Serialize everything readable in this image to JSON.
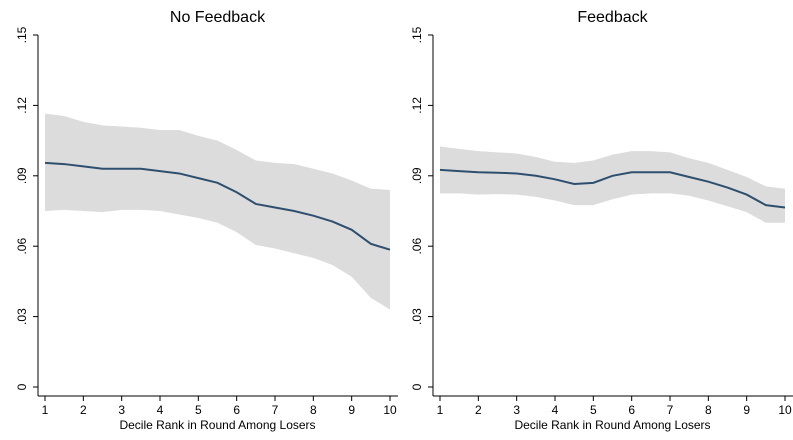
{
  "chart_data": [
    {
      "type": "line",
      "title": "No Feedback",
      "xlabel": "Decile Rank in Round Among Losers",
      "x": [
        1,
        1.5,
        2,
        2.5,
        3,
        3.5,
        4,
        4.5,
        5,
        5.5,
        6,
        6.5,
        7,
        7.5,
        8,
        8.5,
        9,
        9.5,
        10
      ],
      "series": [
        {
          "color": "#2f4f6f",
          "values": [
            0.0955,
            0.095,
            0.094,
            0.093,
            0.093,
            0.093,
            0.092,
            0.091,
            0.089,
            0.087,
            0.083,
            0.078,
            0.0765,
            0.075,
            0.073,
            0.0705,
            0.067,
            0.061,
            0.0585
          ],
          "upper": [
            0.1165,
            0.1155,
            0.113,
            0.1115,
            0.111,
            0.1105,
            0.1095,
            0.1095,
            0.107,
            0.105,
            0.101,
            0.0965,
            0.0955,
            0.095,
            0.093,
            0.091,
            0.088,
            0.0845,
            0.084
          ],
          "lower": [
            0.075,
            0.0755,
            0.075,
            0.0745,
            0.0755,
            0.0755,
            0.075,
            0.0735,
            0.072,
            0.07,
            0.066,
            0.0605,
            0.059,
            0.057,
            0.055,
            0.052,
            0.047,
            0.038,
            0.033
          ],
          "band_color": "#dcdcdc"
        }
      ],
      "xlim": [
        1,
        10
      ],
      "xticks": [
        1,
        2,
        3,
        4,
        5,
        6,
        7,
        8,
        9,
        10
      ],
      "ylim": [
        0,
        0.15
      ],
      "yticks": [
        0,
        {
          "value": 0.03,
          "label": ".03"
        },
        {
          "value": 0.06,
          "label": ".06"
        },
        {
          "value": 0.09,
          "label": ".09"
        },
        {
          "value": 0.12,
          "label": ".12"
        },
        {
          "value": 0.15,
          "label": ".15"
        }
      ]
    },
    {
      "type": "line",
      "title": "Feedback",
      "xlabel": "Decile Rank in Round Among Losers",
      "x": [
        1,
        1.5,
        2,
        2.5,
        3,
        3.5,
        4,
        4.5,
        5,
        5.5,
        6,
        6.5,
        7,
        7.5,
        8,
        8.5,
        9,
        9.5,
        10
      ],
      "series": [
        {
          "color": "#2f4f6f",
          "values": [
            0.0925,
            0.092,
            0.0915,
            0.0913,
            0.091,
            0.09,
            0.0885,
            0.0865,
            0.087,
            0.09,
            0.0915,
            0.0915,
            0.0915,
            0.0895,
            0.0875,
            0.085,
            0.082,
            0.0775,
            0.0765
          ],
          "upper": [
            0.1025,
            0.1015,
            0.1005,
            0.1,
            0.0995,
            0.098,
            0.096,
            0.0955,
            0.0965,
            0.099,
            0.1005,
            0.1005,
            0.1,
            0.0975,
            0.0955,
            0.0925,
            0.0895,
            0.0855,
            0.0845
          ],
          "lower": [
            0.0825,
            0.0825,
            0.082,
            0.0822,
            0.082,
            0.081,
            0.0795,
            0.0775,
            0.0775,
            0.08,
            0.082,
            0.0825,
            0.0825,
            0.0815,
            0.0795,
            0.077,
            0.0745,
            0.07,
            0.07
          ],
          "band_color": "#dcdcdc"
        }
      ],
      "xlim": [
        1,
        10
      ],
      "xticks": [
        1,
        2,
        3,
        4,
        5,
        6,
        7,
        8,
        9,
        10
      ],
      "ylim": [
        0,
        0.15
      ],
      "yticks": [
        0,
        {
          "value": 0.03,
          "label": ".03"
        },
        {
          "value": 0.06,
          "label": ".06"
        },
        {
          "value": 0.09,
          "label": ".09"
        },
        {
          "value": 0.12,
          "label": ".12"
        },
        {
          "value": 0.15,
          "label": ".15"
        }
      ]
    }
  ]
}
